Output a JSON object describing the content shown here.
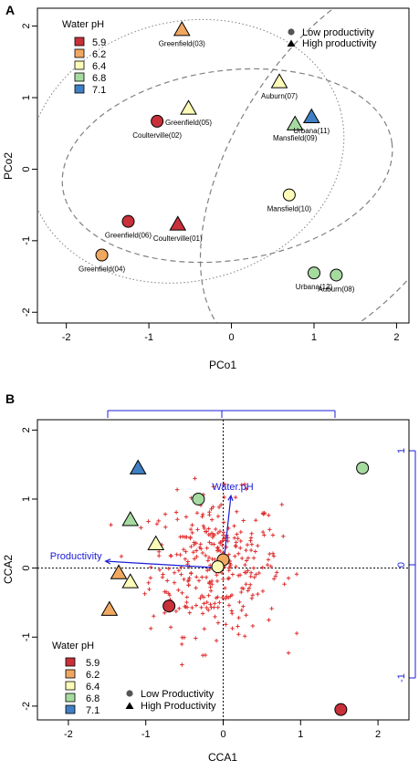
{
  "colors": {
    "ph_5_9": "#c8303a",
    "ph_6_2": "#f0a860",
    "ph_6_4": "#fcfcb8",
    "ph_6_8": "#a6dba0",
    "ph_7_1": "#3f7fc4",
    "vector": "#1c1cd8",
    "species": "#e03030",
    "ellipse": "#808080"
  },
  "chart_data": [
    {
      "type": "scatter",
      "panel_label": "A",
      "xlabel": "PCo1",
      "ylabel": "PCo2",
      "xlim": [
        -2.35,
        2.15
      ],
      "ylim": [
        -2.15,
        2.25
      ],
      "xticks": [
        "-2",
        "-1",
        "0",
        "1",
        "2"
      ],
      "yticks": [
        "-2",
        "-1",
        "0",
        "1",
        "2"
      ],
      "legend_ph": {
        "title": "Water pH",
        "entries": [
          {
            "label": "5.9",
            "color": "#c8303a"
          },
          {
            "label": "6.2",
            "color": "#f0a860"
          },
          {
            "label": "6.4",
            "color": "#fcfcb8"
          },
          {
            "label": "6.8",
            "color": "#a6dba0"
          },
          {
            "label": "7.1",
            "color": "#3f7fc4"
          }
        ]
      },
      "legend_shape": [
        {
          "label": "Low productivity",
          "shape": "circle"
        },
        {
          "label": "High productivity",
          "shape": "triangle"
        }
      ],
      "points": [
        {
          "label": "Greenfield(03)",
          "x": -0.6,
          "y": 1.95,
          "ph": "6.2",
          "shape": "triangle"
        },
        {
          "label": "Auburn(07)",
          "x": 0.58,
          "y": 1.22,
          "ph": "6.4",
          "shape": "triangle"
        },
        {
          "label": "Urbana(11)",
          "x": 0.97,
          "y": 0.73,
          "ph": "7.1",
          "shape": "triangle"
        },
        {
          "label": "Mansfield(09)",
          "x": 0.77,
          "y": 0.63,
          "ph": "6.8",
          "shape": "triangle"
        },
        {
          "label": "Greenfield(05)",
          "x": -0.52,
          "y": 0.85,
          "ph": "6.4",
          "shape": "triangle"
        },
        {
          "label": "Coulterville(02)",
          "x": -0.9,
          "y": 0.67,
          "ph": "5.9",
          "shape": "circle"
        },
        {
          "label": "Mansfield(10)",
          "x": 0.7,
          "y": -0.36,
          "ph": "6.4",
          "shape": "circle"
        },
        {
          "label": "Greenfield(06)",
          "x": -1.25,
          "y": -0.73,
          "ph": "5.9",
          "shape": "circle"
        },
        {
          "label": "Coulterville(01)",
          "x": -0.65,
          "y": -0.77,
          "ph": "5.9",
          "shape": "triangle"
        },
        {
          "label": "Greenfield(04)",
          "x": -1.57,
          "y": -1.2,
          "ph": "6.2",
          "shape": "circle"
        },
        {
          "label": "Urbana(12)",
          "x": 1.0,
          "y": -1.45,
          "ph": "6.8",
          "shape": "circle"
        },
        {
          "label": "Auburn(08)",
          "x": 1.27,
          "y": -1.48,
          "ph": "6.8",
          "shape": "circle"
        }
      ]
    },
    {
      "type": "scatter",
      "panel_label": "B",
      "xlabel": "CCA1",
      "ylabel": "CCA2",
      "xlim": [
        -2.4,
        2.4
      ],
      "ylim": [
        -2.2,
        2.15
      ],
      "xticks": [
        "-2",
        "-1",
        "0",
        "1",
        "2"
      ],
      "yticks": [
        "-2",
        "-1",
        "0",
        "1",
        "2"
      ],
      "right_axis_ticks": [
        "-1",
        "0",
        "1"
      ],
      "legend_ph": {
        "title": "Water pH",
        "entries": [
          {
            "label": "5.9",
            "color": "#c8303a"
          },
          {
            "label": "6.2",
            "color": "#f0a860"
          },
          {
            "label": "6.4",
            "color": "#fcfcb8"
          },
          {
            "label": "6.8",
            "color": "#a6dba0"
          },
          {
            "label": "7.1",
            "color": "#3f7fc4"
          }
        ]
      },
      "legend_shape": [
        {
          "label": "Low Productivity",
          "shape": "circle"
        },
        {
          "label": "High Productivity",
          "shape": "triangle"
        }
      ],
      "vectors": [
        {
          "label": "Water.pH",
          "x": 0.1,
          "y": 1.05
        },
        {
          "label": "Productivity",
          "x": -1.52,
          "y": 0.1
        }
      ],
      "points": [
        {
          "x": 1.8,
          "y": 1.45,
          "ph": "6.8",
          "shape": "circle"
        },
        {
          "x": -1.1,
          "y": 1.45,
          "ph": "7.1",
          "shape": "triangle"
        },
        {
          "x": -0.32,
          "y": 1.0,
          "ph": "6.8",
          "shape": "circle"
        },
        {
          "x": -1.2,
          "y": 0.7,
          "ph": "6.8",
          "shape": "triangle"
        },
        {
          "x": -0.87,
          "y": 0.35,
          "ph": "6.4",
          "shape": "triangle"
        },
        {
          "x": 0.0,
          "y": 0.12,
          "ph": "6.2",
          "shape": "circle"
        },
        {
          "x": -0.07,
          "y": 0.02,
          "ph": "6.4",
          "shape": "circle"
        },
        {
          "x": -1.35,
          "y": -0.07,
          "ph": "6.2",
          "shape": "triangle"
        },
        {
          "x": -1.2,
          "y": -0.2,
          "ph": "6.4",
          "shape": "triangle"
        },
        {
          "x": -0.7,
          "y": -0.55,
          "ph": "5.9",
          "shape": "circle"
        },
        {
          "x": -1.47,
          "y": -0.6,
          "ph": "6.2",
          "shape": "triangle"
        },
        {
          "x": 1.52,
          "y": -2.05,
          "ph": "5.9",
          "shape": "circle"
        }
      ]
    }
  ]
}
